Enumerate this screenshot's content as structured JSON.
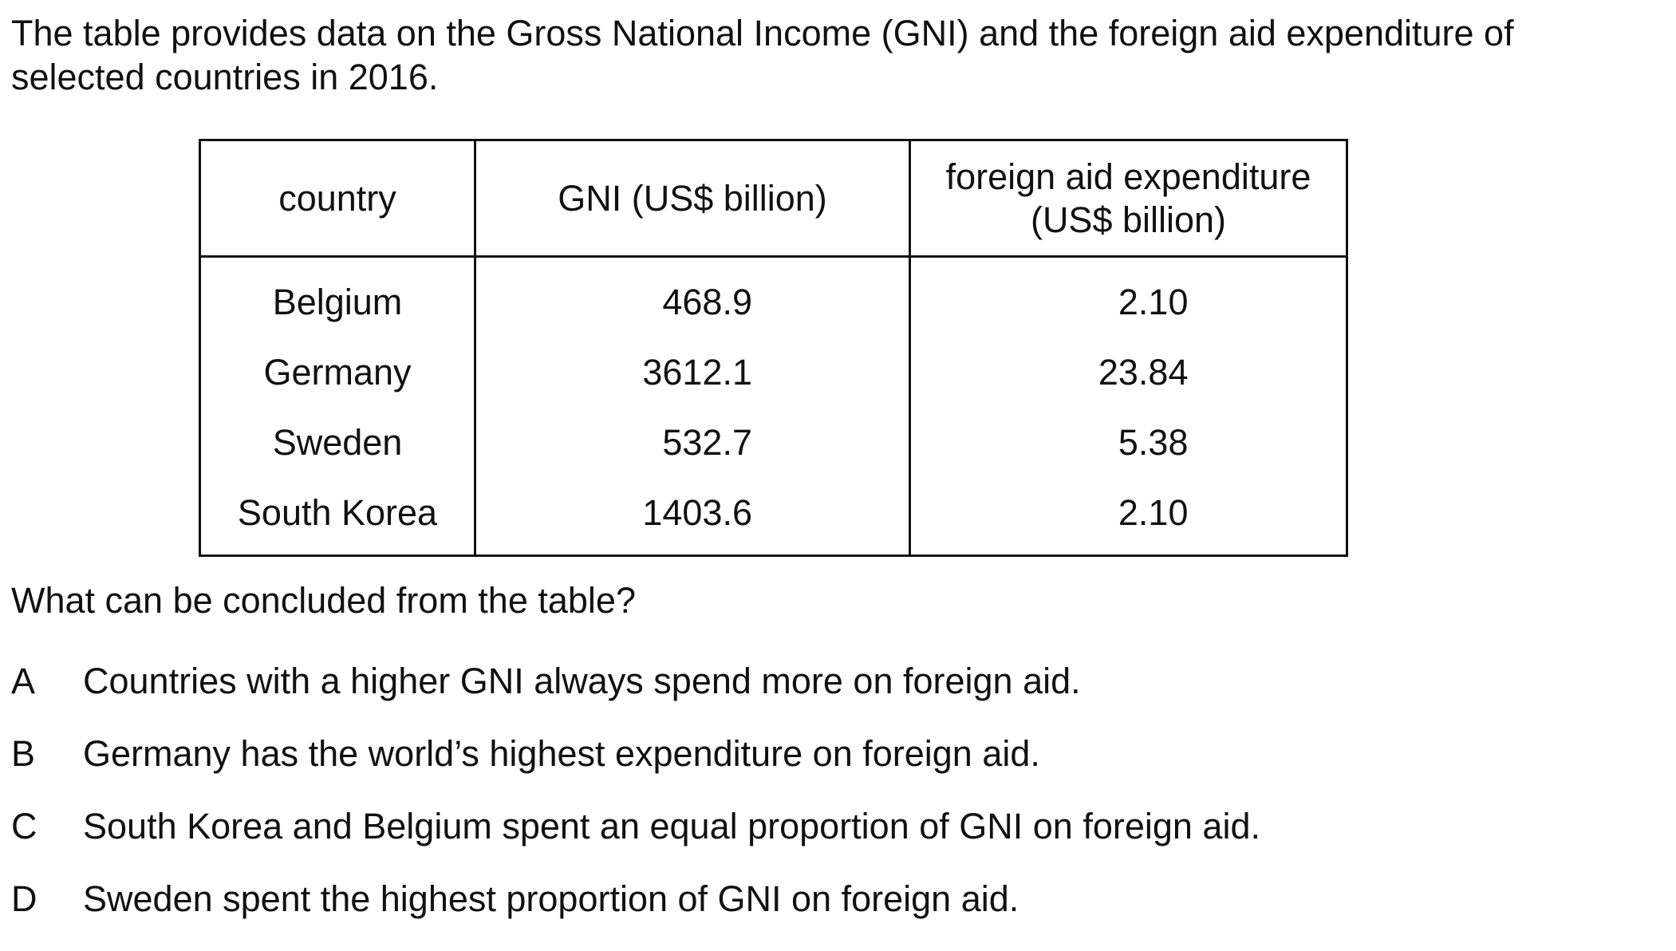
{
  "intro": "The table provides data on the Gross National Income (GNI) and the foreign aid expenditure of selected countries in 2016.",
  "table": {
    "headers": [
      "country",
      "GNI (US$ billion)",
      "foreign aid expenditure (US$ billion)"
    ],
    "rows": [
      {
        "country": "Belgium",
        "gni": "468.9",
        "aid": "2.10"
      },
      {
        "country": "Germany",
        "gni": "3612.1",
        "aid": "23.84"
      },
      {
        "country": "Sweden",
        "gni": "532.7",
        "aid": "5.38"
      },
      {
        "country": "South Korea",
        "gni": "1403.6",
        "aid": "2.10"
      }
    ]
  },
  "question": "What can be concluded from the table?",
  "options": [
    {
      "letter": "A",
      "text": "Countries with a higher GNI always spend more on foreign aid."
    },
    {
      "letter": "B",
      "text": "Germany has the world’s highest expenditure on foreign aid."
    },
    {
      "letter": "C",
      "text": "South Korea and Belgium spent an equal proportion of GNI on foreign aid."
    },
    {
      "letter": "D",
      "text": "Sweden spent the highest proportion of GNI on foreign aid."
    }
  ]
}
